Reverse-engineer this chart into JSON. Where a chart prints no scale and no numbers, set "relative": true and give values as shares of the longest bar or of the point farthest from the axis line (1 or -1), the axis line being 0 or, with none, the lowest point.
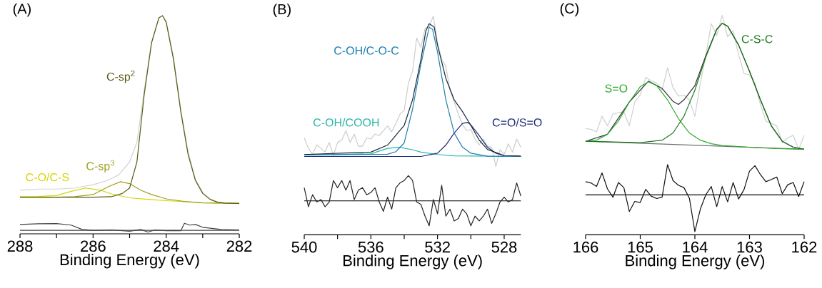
{
  "chart_data": [
    {
      "type": "line",
      "title": "(A)",
      "xlabel": "Binding Energy (eV)",
      "relative": true,
      "xlim": [
        288,
        282
      ],
      "xticks": [
        288,
        {
          "value": 287,
          "label": null
        },
        286,
        {
          "value": 285,
          "label": null
        },
        284,
        {
          "value": 283,
          "label": null
        },
        282
      ],
      "series": [
        {
          "color": "#d3d3d3",
          "x": [
            288,
            287.5,
            287,
            286.5,
            286,
            285.6,
            285.3,
            285.0,
            284.8,
            284.6,
            284.4,
            284.2,
            284.1,
            284.0,
            283.8,
            283.6,
            283.4,
            283.2,
            283.0,
            282.8,
            282.6,
            282.4,
            282
          ],
          "values": [
            0.2,
            0.205,
            0.205,
            0.21,
            0.225,
            0.245,
            0.27,
            0.33,
            0.42,
            0.66,
            0.88,
            0.99,
            1.0,
            0.975,
            0.81,
            0.57,
            0.375,
            0.25,
            0.19,
            0.16,
            0.147,
            0.142,
            0.14
          ]
        },
        {
          "name": "C-O/C-S",
          "color": "#d4d400",
          "x": [
            288,
            287.5,
            287,
            286.6,
            286.2,
            285.8,
            285.5,
            285,
            284.5,
            284,
            283,
            282
          ],
          "values": [
            0.17,
            0.171,
            0.175,
            0.195,
            0.21,
            0.2,
            0.183,
            0.165,
            0.158,
            0.152,
            0.143,
            0.138
          ]
        },
        {
          "name": "C-sp$^{3}$",
          "color": "#a0a020",
          "x": [
            288,
            287,
            286.5,
            286,
            285.6,
            285.25,
            285.0,
            284.7,
            284.4,
            284,
            283.5,
            283,
            282
          ],
          "values": [
            0.168,
            0.168,
            0.17,
            0.18,
            0.215,
            0.239,
            0.23,
            0.2,
            0.18,
            0.16,
            0.148,
            0.142,
            0.139
          ]
        },
        {
          "name": "C-sp$^{2}$",
          "color": "#5a5a10",
          "x": [
            288,
            286,
            285.5,
            285.2,
            285.0,
            284.8,
            284.6,
            284.4,
            284.2,
            284.1,
            284.0,
            283.8,
            283.6,
            283.4,
            283.2,
            283.0,
            282.8,
            282.6,
            282.4,
            282
          ],
          "values": [
            0.168,
            0.168,
            0.17,
            0.185,
            0.21,
            0.33,
            0.64,
            0.875,
            0.99,
            1.0,
            0.97,
            0.8,
            0.56,
            0.364,
            0.245,
            0.185,
            0.158,
            0.145,
            0.141,
            0.139
          ]
        },
        {
          "color": "#404040",
          "x": [
            288,
            282
          ],
          "values": [
            0.016,
            0.016
          ]
        },
        {
          "color": "#404040",
          "x": [
            288,
            287.5,
            287,
            286.6,
            286.3,
            286,
            285.5,
            285,
            284.7,
            284.5,
            284.3,
            284,
            283.8,
            283.6,
            283.5,
            283.35,
            283.2,
            283,
            282.5,
            282
          ],
          "values": [
            0.043,
            0.046,
            0.047,
            0.04,
            0.02,
            0.016,
            0.018,
            0.012,
            0.02,
            0.008,
            0.018,
            0.014,
            0.015,
            0.014,
            0.048,
            0.04,
            0.043,
            0.03,
            0.02,
            0.018
          ]
        }
      ]
    },
    {
      "type": "line",
      "title": "(B)",
      "xlabel": "Binding Energy (eV)",
      "relative": true,
      "xlim": [
        540,
        527
      ],
      "xticks": [
        540,
        {
          "value": 538,
          "label": null
        },
        536,
        {
          "value": 534,
          "label": null
        },
        532,
        {
          "value": 530,
          "label": null
        },
        528
      ],
      "series": [
        {
          "color": "#cccccc",
          "x": [
            540,
            539.75,
            539.5,
            539.25,
            539,
            538.75,
            538.5,
            538.25,
            538,
            537.75,
            537.5,
            537.25,
            537,
            536.75,
            536.5,
            536.25,
            536,
            535.75,
            535.5,
            535.25,
            535,
            534.75,
            534.5,
            534.25,
            534,
            533.75,
            533.5,
            533.25,
            533,
            532.75,
            532.5,
            532.25,
            532,
            531.75,
            531.5,
            531.25,
            531,
            530.75,
            530.5,
            530.25,
            530,
            529.75,
            529.5,
            529.25,
            529,
            528.75,
            528.5,
            528.25,
            528,
            527.75,
            527.5,
            527.25,
            527
          ],
          "values": [
            0.443,
            0.395,
            0.367,
            0.411,
            0.395,
            0.378,
            0.422,
            0.362,
            0.422,
            0.433,
            0.476,
            0.422,
            0.46,
            0.405,
            0.405,
            0.443,
            0.438,
            0.46,
            0.454,
            0.476,
            0.498,
            0.471,
            0.509,
            0.552,
            0.568,
            0.693,
            0.748,
            0.9,
            0.857,
            0.943,
            0.954,
            1.0,
            0.878,
            0.802,
            0.77,
            0.661,
            0.607,
            0.552,
            0.503,
            0.476,
            0.482,
            0.438,
            0.411,
            0.438,
            0.405,
            0.4,
            0.313,
            0.389,
            0.367,
            0.416,
            0.378,
            0.438,
            0.4
          ]
        },
        {
          "name": "C-OH/COOH",
          "color": "#2ab5aa",
          "x": [
            540,
            536,
            535.5,
            535,
            534.3,
            533.5,
            533,
            532,
            531,
            527
          ],
          "values": [
            0.365,
            0.37,
            0.383,
            0.395,
            0.4,
            0.389,
            0.378,
            0.367,
            0.361,
            0.358
          ]
        },
        {
          "name": "C=O/S=O",
          "color": "#1e2a78",
          "x": [
            540,
            533,
            532,
            531.5,
            531,
            530.5,
            530.2,
            530,
            529.5,
            529,
            528.5,
            528,
            527
          ],
          "values": [
            0.358,
            0.358,
            0.373,
            0.41,
            0.465,
            0.509,
            0.514,
            0.503,
            0.454,
            0.4,
            0.373,
            0.362,
            0.358
          ]
        },
        {
          "name": "C-OH/C-O-C",
          "color": "#1f7fb0",
          "x": [
            540,
            535,
            534.5,
            534,
            533.5,
            533,
            532.5,
            532.3,
            532,
            531.5,
            531,
            530.5,
            530,
            529,
            527
          ],
          "values": [
            0.365,
            0.368,
            0.38,
            0.42,
            0.574,
            0.78,
            0.949,
            0.94,
            0.835,
            0.617,
            0.465,
            0.4,
            0.373,
            0.359,
            0.358
          ]
        },
        {
          "color": "#1a2a3a",
          "x": [
            540,
            536,
            535,
            534,
            533.5,
            533,
            532.7,
            532.5,
            532.2,
            532,
            531.5,
            531,
            530.5,
            530,
            529.5,
            529,
            528,
            527
          ],
          "values": [
            0.367,
            0.378,
            0.41,
            0.5,
            0.617,
            0.8,
            0.933,
            0.965,
            0.95,
            0.867,
            0.715,
            0.617,
            0.563,
            0.5,
            0.433,
            0.39,
            0.362,
            0.36
          ]
        },
        {
          "color": "#000000",
          "x": [
            540,
            527
          ],
          "values": [
            0.155,
            0.155
          ]
        },
        {
          "color": "#222222",
          "x": [
            540,
            539.75,
            539.5,
            539.25,
            539,
            538.75,
            538.5,
            538.25,
            538,
            537.75,
            537.5,
            537.25,
            537,
            536.75,
            536.5,
            536.25,
            536,
            535.75,
            535.5,
            535.25,
            535,
            534.75,
            534.5,
            534.25,
            534,
            533.75,
            533.5,
            533.25,
            533,
            532.75,
            532.5,
            532.25,
            532,
            531.75,
            531.5,
            531.25,
            531,
            530.75,
            530.5,
            530.25,
            530,
            529.75,
            529.5,
            529.25,
            529,
            528.75,
            528.5,
            528.25,
            528,
            527.75,
            527.5,
            527.25,
            527
          ],
          "values": [
            0.215,
            0.128,
            0.183,
            0.15,
            0.161,
            0.128,
            0.15,
            0.248,
            0.215,
            0.248,
            0.204,
            0.248,
            0.161,
            0.204,
            0.215,
            0.183,
            0.193,
            0.215,
            0.15,
            0.107,
            0.172,
            0.117,
            0.215,
            0.237,
            0.248,
            0.27,
            0.248,
            0.15,
            0.139,
            0.085,
            0.041,
            0.161,
            0.096,
            0.226,
            0.085,
            0.117,
            0.063,
            0.074,
            0.117,
            0.096,
            0.041,
            0.085,
            0.063,
            0.085,
            0.117,
            0.052,
            0.096,
            0.15,
            0.172,
            0.15,
            0.161,
            0.237,
            0.177
          ]
        }
      ]
    },
    {
      "type": "line",
      "title": "(C)",
      "xlabel": "Binding Energy (eV)",
      "relative": true,
      "xlim": [
        166,
        162
      ],
      "xticks": [
        166,
        165,
        164,
        163,
        162
      ],
      "series": [
        {
          "color": "#d0d0d0",
          "x": [
            166,
            165.9,
            165.8,
            165.7,
            165.6,
            165.5,
            165.4,
            165.3,
            165.2,
            165.1,
            165,
            164.9,
            164.8,
            164.7,
            164.6,
            164.5,
            164.4,
            164.3,
            164.2,
            164.1,
            164,
            163.9,
            163.8,
            163.7,
            163.6,
            163.5,
            163.4,
            163.3,
            163.2,
            163.1,
            163,
            162.9,
            162.8,
            162.7,
            162.6,
            162.5,
            162.4,
            162.3,
            162.2,
            162.1,
            162
          ],
          "values": [
            0.485,
            0.48,
            0.469,
            0.54,
            0.496,
            0.55,
            0.556,
            0.561,
            0.496,
            0.605,
            0.637,
            0.718,
            0.702,
            0.691,
            0.659,
            0.762,
            0.67,
            0.632,
            0.637,
            0.615,
            0.54,
            0.691,
            0.816,
            0.962,
            0.908,
            1.0,
            0.902,
            0.93,
            0.821,
            0.735,
            0.729,
            0.691,
            0.594,
            0.518,
            0.507,
            0.496,
            0.42,
            0.442,
            0.453,
            0.388,
            0.453
          ]
        },
        {
          "color": "#707070",
          "x": [
            166,
            162
          ],
          "values": [
            0.426,
            0.39
          ]
        },
        {
          "color": "#333333",
          "x": [
            166,
            165.6,
            165.2,
            164.85,
            164.6,
            164.4,
            164.3,
            164.2,
            164,
            163.8,
            163.6,
            163.5,
            163.4,
            163.2,
            163,
            162.8,
            162.6,
            162.4,
            162.2,
            162
          ],
          "values": [
            0.426,
            0.458,
            0.605,
            0.7,
            0.667,
            0.608,
            0.594,
            0.615,
            0.68,
            0.816,
            0.937,
            0.964,
            0.951,
            0.865,
            0.745,
            0.615,
            0.496,
            0.426,
            0.399,
            0.39
          ]
        },
        {
          "name": "S=O",
          "color": "#2eaa2e",
          "x": [
            166,
            165.8,
            165.6,
            165.4,
            165.2,
            165,
            164.85,
            164.7,
            164.5,
            164.3,
            164.1,
            163.9,
            163.7,
            163.5,
            163,
            162.5,
            162
          ],
          "values": [
            0.426,
            0.431,
            0.458,
            0.518,
            0.605,
            0.675,
            0.697,
            0.68,
            0.615,
            0.529,
            0.464,
            0.431,
            0.415,
            0.407,
            0.399,
            0.393,
            0.39
          ]
        },
        {
          "name": "C-S-C",
          "color": "#1e7a1e",
          "x": [
            166,
            165,
            164.6,
            164.4,
            164.2,
            164,
            163.8,
            163.6,
            163.5,
            163.4,
            163.2,
            163,
            162.8,
            162.6,
            162.4,
            162.2,
            162
          ],
          "values": [
            0.426,
            0.42,
            0.431,
            0.464,
            0.54,
            0.659,
            0.81,
            0.935,
            0.964,
            0.951,
            0.865,
            0.745,
            0.615,
            0.496,
            0.426,
            0.399,
            0.39
          ]
        },
        {
          "color": "#000000",
          "x": [
            166,
            162
          ],
          "values": [
            0.182,
            0.182
          ]
        },
        {
          "color": "#111111",
          "x": [
            166,
            165.9,
            165.8,
            165.7,
            165.6,
            165.5,
            165.4,
            165.3,
            165.2,
            165.1,
            165,
            164.9,
            164.8,
            164.7,
            164.6,
            164.5,
            164.4,
            164.3,
            164.2,
            164.1,
            164,
            163.9,
            163.8,
            163.7,
            163.6,
            163.5,
            163.4,
            163.3,
            163.2,
            163.1,
            163,
            162.9,
            162.8,
            162.7,
            162.6,
            162.5,
            162.4,
            162.3,
            162.2,
            162.1,
            162
          ],
          "values": [
            0.242,
            0.236,
            0.22,
            0.282,
            0.209,
            0.171,
            0.238,
            0.215,
            0.106,
            0.152,
            0.147,
            0.207,
            0.176,
            0.165,
            0.171,
            0.32,
            0.247,
            0.225,
            0.215,
            0.166,
            0.014,
            0.117,
            0.182,
            0.22,
            0.128,
            0.22,
            0.15,
            0.238,
            0.163,
            0.206,
            0.29,
            0.315,
            0.274,
            0.242,
            0.252,
            0.263,
            0.187,
            0.228,
            0.238,
            0.174,
            0.242
          ]
        }
      ]
    }
  ]
}
